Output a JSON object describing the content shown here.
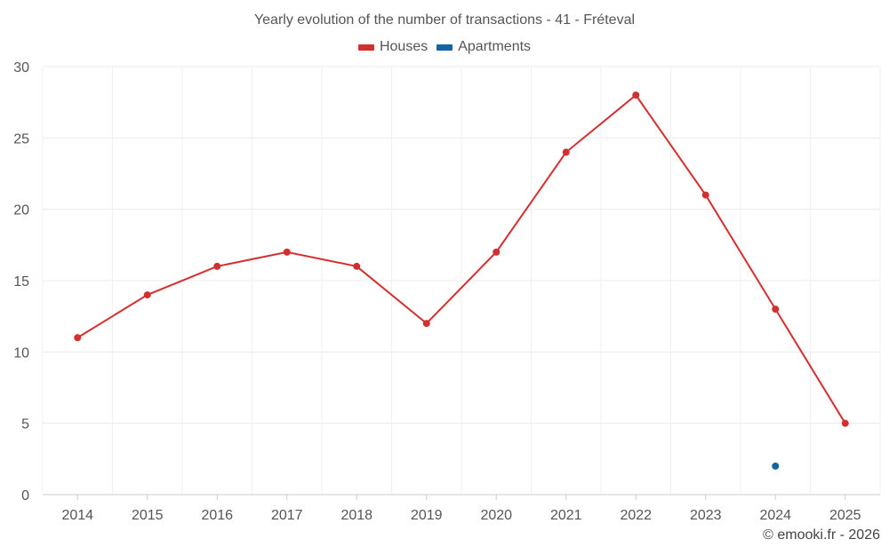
{
  "chart_data": {
    "type": "line",
    "title": "Yearly evolution of the number of transactions - 41 - Fréteval",
    "categories": [
      "2014",
      "2015",
      "2016",
      "2017",
      "2018",
      "2019",
      "2020",
      "2021",
      "2022",
      "2023",
      "2024",
      "2025"
    ],
    "series": [
      {
        "name": "Houses",
        "color": "#d32f2f",
        "values": [
          11,
          14,
          16,
          17,
          16,
          12,
          17,
          24,
          28,
          21,
          13,
          5
        ]
      },
      {
        "name": "Apartments",
        "color": "#1565a0",
        "values": [
          null,
          null,
          null,
          null,
          null,
          null,
          null,
          null,
          null,
          null,
          2,
          null
        ]
      }
    ],
    "yticks": [
      "0",
      "5",
      "10",
      "15",
      "20",
      "25",
      "30"
    ],
    "ylim": [
      0,
      30
    ],
    "xlabel": "",
    "ylabel": "",
    "grid": true,
    "legend_position": "top-center"
  },
  "watermark": "© emooki.fr - 2026"
}
